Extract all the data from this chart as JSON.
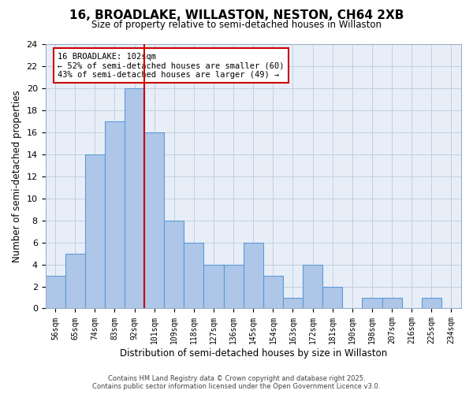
{
  "title_line1": "16, BROADLAKE, WILLASTON, NESTON, CH64 2XB",
  "title_line2": "Size of property relative to semi-detached houses in Willaston",
  "xlabel": "Distribution of semi-detached houses by size in Willaston",
  "ylabel": "Number of semi-detached properties",
  "bar_labels": [
    "56sqm",
    "65sqm",
    "74sqm",
    "83sqm",
    "92sqm",
    "101sqm",
    "109sqm",
    "118sqm",
    "127sqm",
    "136sqm",
    "145sqm",
    "154sqm",
    "163sqm",
    "172sqm",
    "181sqm",
    "190sqm",
    "198sqm",
    "207sqm",
    "216sqm",
    "225sqm",
    "234sqm"
  ],
  "bar_values": [
    3,
    5,
    14,
    17,
    20,
    16,
    8,
    6,
    4,
    4,
    6,
    3,
    1,
    4,
    2,
    0,
    1,
    1,
    0,
    1,
    0
  ],
  "bar_color": "#aec6e8",
  "bar_edgecolor": "#5b9bd5",
  "vline_x": 4.5,
  "vline_color": "#cc0000",
  "annotation_title": "16 BROADLAKE: 102sqm",
  "annotation_line1": "← 52% of semi-detached houses are smaller (60)",
  "annotation_line2": "43% of semi-detached houses are larger (49) →",
  "annotation_box_edgecolor": "#cc0000",
  "ylim": [
    0,
    24
  ],
  "yticks": [
    0,
    2,
    4,
    6,
    8,
    10,
    12,
    14,
    16,
    18,
    20,
    22,
    24
  ],
  "grid_color": "#c0d0e0",
  "background_color": "#e8eef8",
  "footer_line1": "Contains HM Land Registry data © Crown copyright and database right 2025.",
  "footer_line2": "Contains public sector information licensed under the Open Government Licence v3.0."
}
